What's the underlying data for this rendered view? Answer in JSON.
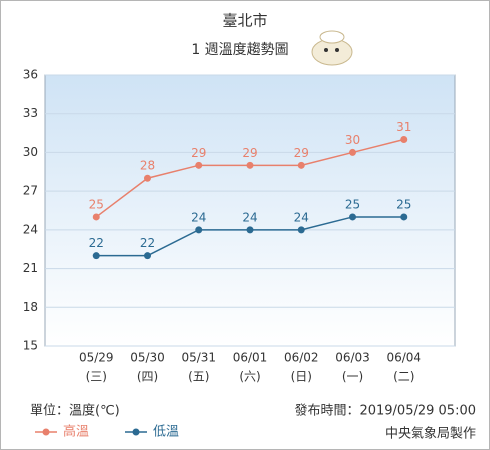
{
  "chart_data": {
    "type": "line",
    "title": "臺北市",
    "subtitle": "1 週溫度趨勢圖",
    "categories": [
      "05/29",
      "05/30",
      "05/31",
      "06/01",
      "06/02",
      "06/03",
      "06/04"
    ],
    "weekdays": [
      "(三)",
      "(四)",
      "(五)",
      "(六)",
      "(日)",
      "(一)",
      "(二)"
    ],
    "series": [
      {
        "name": "高溫",
        "color": "#e8806c",
        "values": [
          25,
          28,
          29,
          29,
          29,
          30,
          31
        ]
      },
      {
        "name": "低溫",
        "color": "#2b6a92",
        "values": [
          22,
          22,
          24,
          24,
          24,
          25,
          25
        ]
      }
    ],
    "ylim": [
      15,
      36
    ],
    "yticks": [
      15,
      18,
      21,
      24,
      27,
      30,
      33,
      36
    ],
    "grid": true,
    "unit_note": "單位：溫度(℃)",
    "publish_time": "發布時間：2019/05/29 05:00",
    "credit": "中央氣象局製作"
  }
}
